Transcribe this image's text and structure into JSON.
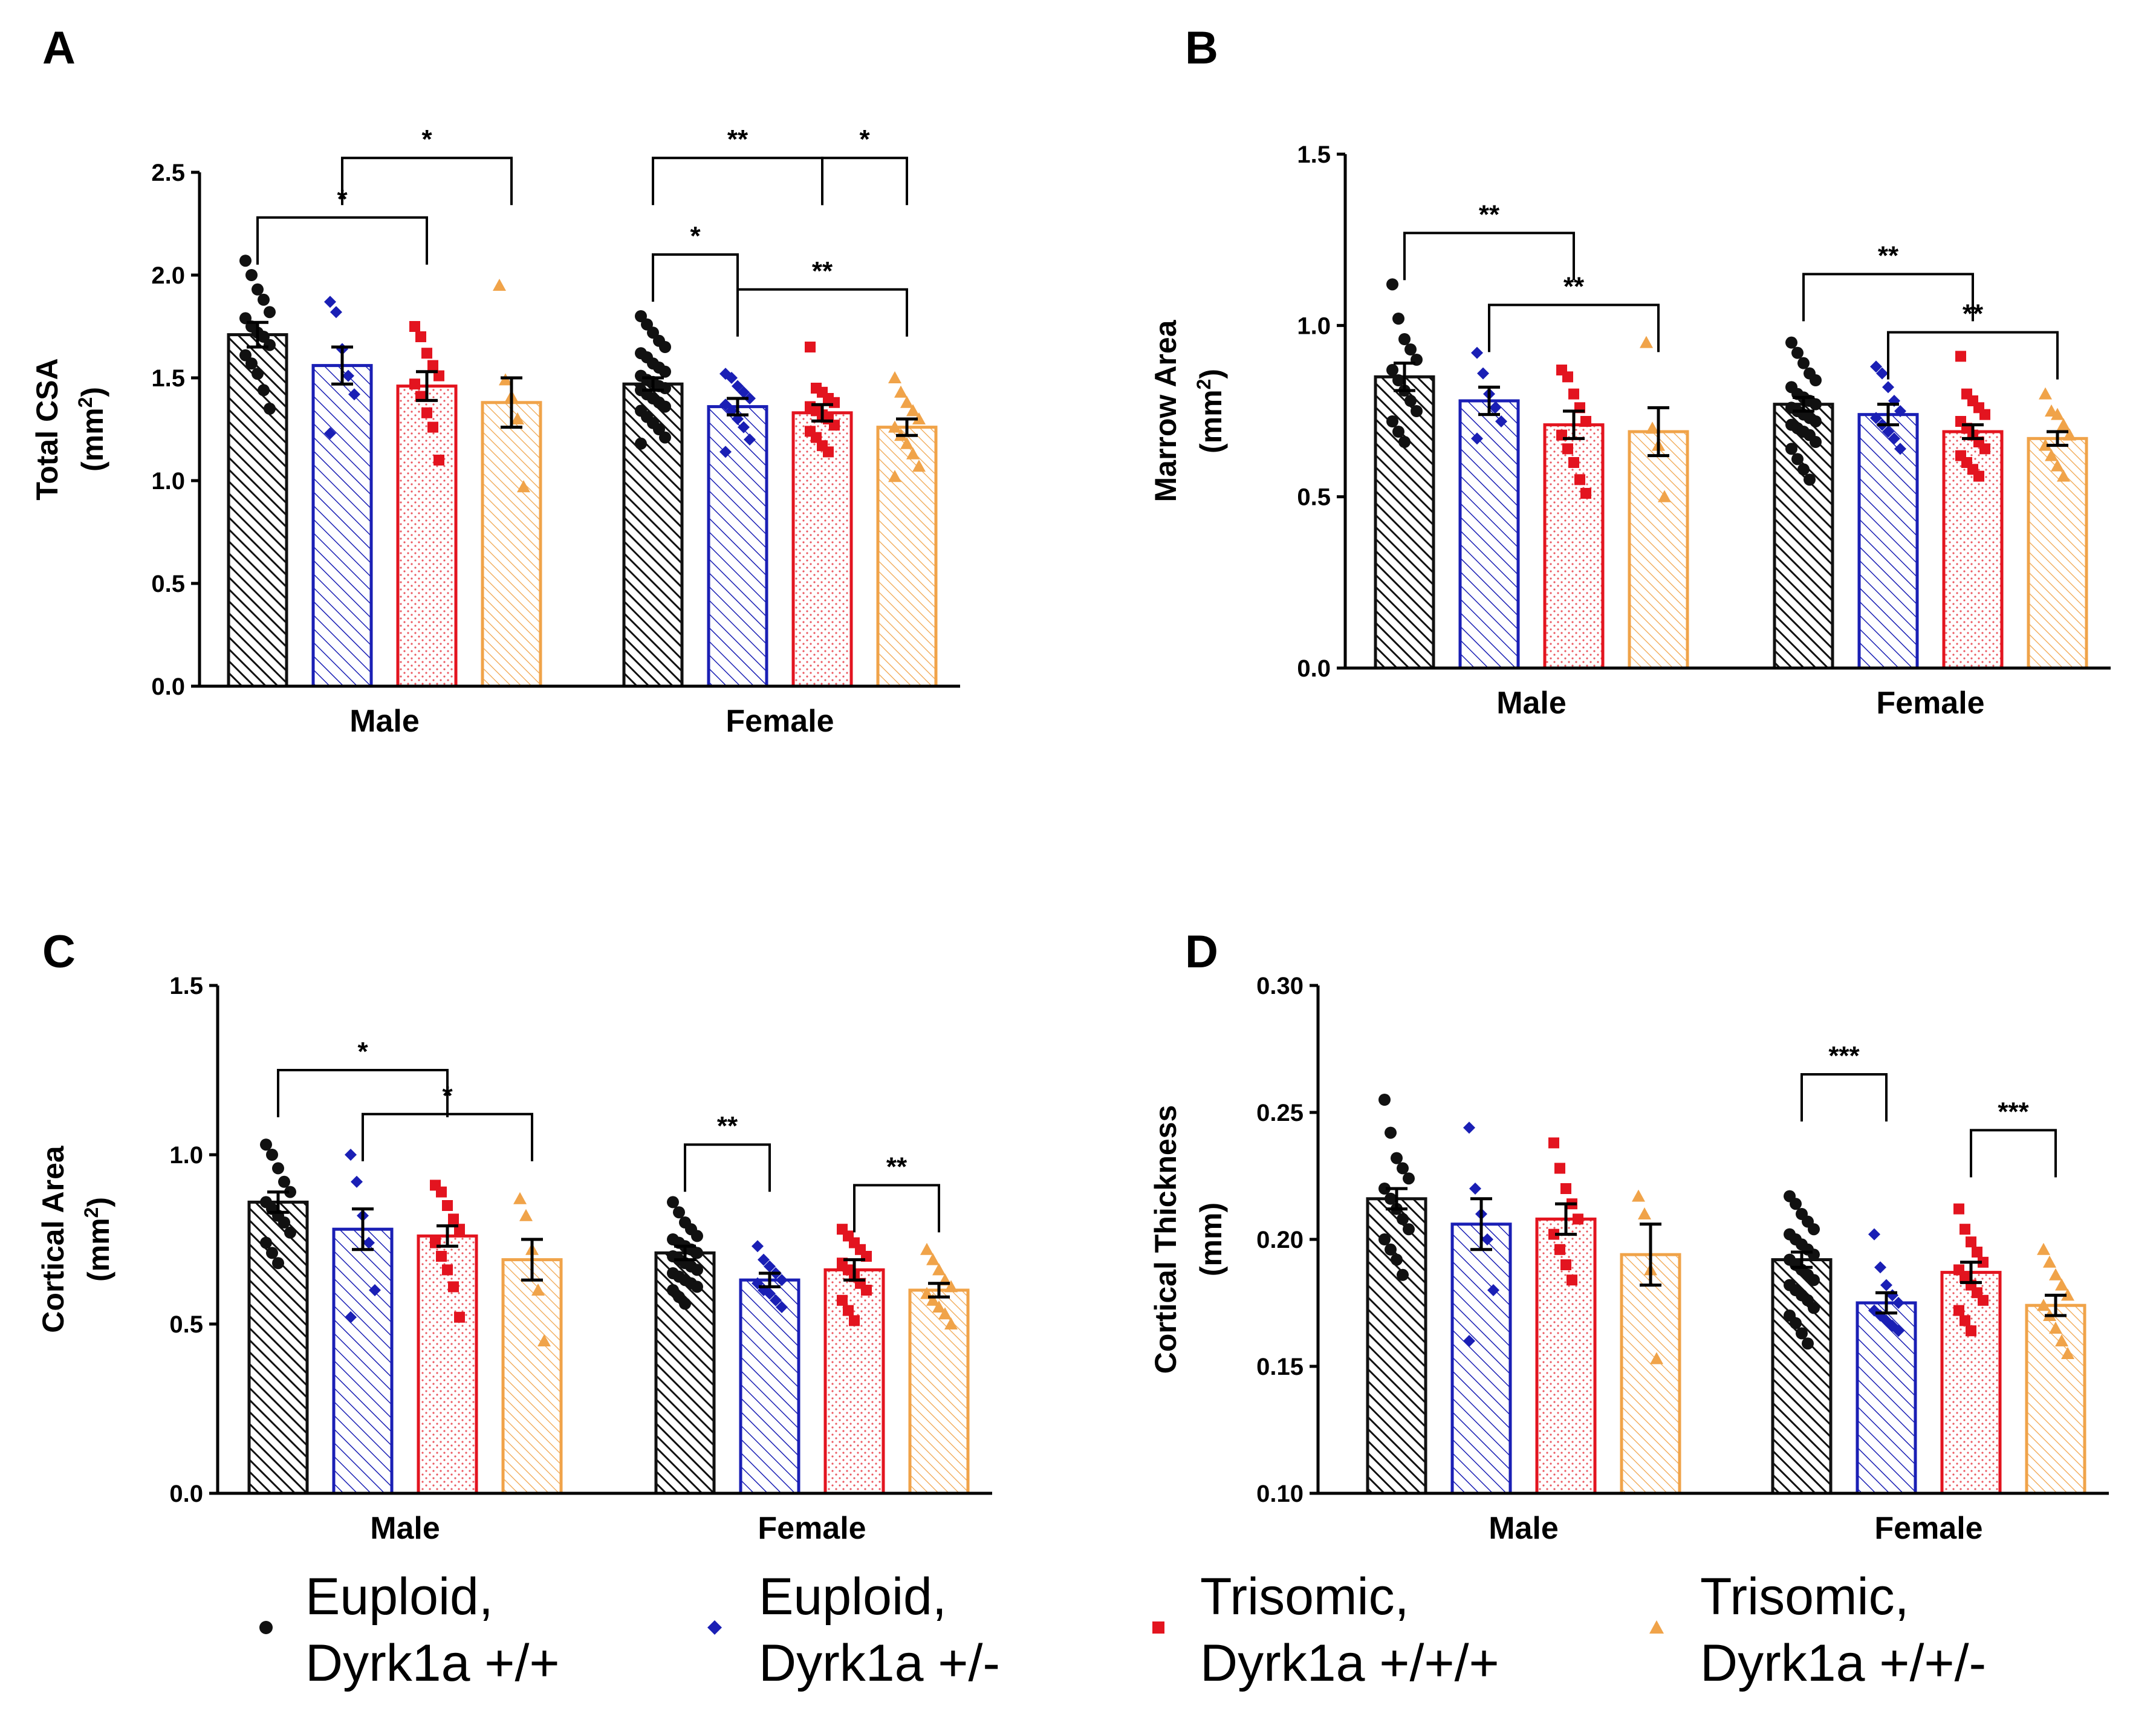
{
  "colors": {
    "euploid_wt": "#111111",
    "euploid_het": "#1a1fb5",
    "trisomic_wt": "#e3141f",
    "trisomic_het": "#f0a349"
  },
  "legend": [
    {
      "key": "euploid_wt",
      "marker": "circle",
      "line1": "Euploid,",
      "line2": "Dyrk1a +/+"
    },
    {
      "key": "euploid_het",
      "marker": "diamond",
      "line1": "Euploid,",
      "line2": "Dyrk1a +/-"
    },
    {
      "key": "trisomic_wt",
      "marker": "square",
      "line1": "Trisomic,",
      "line2": "Dyrk1a +/+/+"
    },
    {
      "key": "trisomic_het",
      "marker": "triangle",
      "line1": "Trisomic,",
      "line2": "Dyrk1a +/+/-"
    }
  ],
  "chart_data": [
    {
      "panel": "A",
      "type": "bar",
      "title": "",
      "ylabel_line1": "Total CSA",
      "ylabel_line2": "(mm",
      "ylabel_sup": "2",
      "ylabel_end": ")",
      "xlabel": "",
      "ylim": [
        0,
        2.5
      ],
      "yticks": [
        0,
        0.5,
        1.0,
        1.5,
        2.0,
        2.5
      ],
      "ytick_labels": [
        "0.0",
        "0.5",
        "1.0",
        "1.5",
        "2.0",
        "2.5"
      ],
      "categories": [
        "Male",
        "Female"
      ],
      "series": [
        {
          "name": "Euploid, Dyrk1a +/+",
          "values": [
            1.71,
            1.47
          ],
          "sem": [
            0.06,
            0.03
          ],
          "points": [
            [
              2.07,
              2.0,
              1.93,
              1.88,
              1.82,
              1.79,
              1.75,
              1.72,
              1.7,
              1.66,
              1.61,
              1.57,
              1.52,
              1.44,
              1.35
            ],
            [
              1.8,
              1.76,
              1.72,
              1.68,
              1.65,
              1.62,
              1.6,
              1.57,
              1.55,
              1.53,
              1.51,
              1.49,
              1.48,
              1.46,
              1.45,
              1.44,
              1.42,
              1.4,
              1.38,
              1.36,
              1.34,
              1.31,
              1.28,
              1.25,
              1.21,
              1.18
            ]
          ]
        },
        {
          "name": "Euploid, Dyrk1a +/-",
          "values": [
            1.56,
            1.36
          ],
          "sem": [
            0.09,
            0.04
          ],
          "points": [
            [
              1.87,
              1.82,
              1.64,
              1.51,
              1.42,
              1.23
            ],
            [
              1.52,
              1.5,
              1.46,
              1.43,
              1.4,
              1.37,
              1.34,
              1.3,
              1.26,
              1.2,
              1.14
            ]
          ]
        },
        {
          "name": "Trisomic, Dyrk1a +/+/+",
          "values": [
            1.46,
            1.33
          ],
          "sem": [
            0.07,
            0.04
          ],
          "points": [
            [
              1.75,
              1.7,
              1.62,
              1.56,
              1.51,
              1.47,
              1.41,
              1.33,
              1.26,
              1.1
            ],
            [
              1.65,
              1.45,
              1.43,
              1.4,
              1.38,
              1.36,
              1.34,
              1.32,
              1.3,
              1.27,
              1.24,
              1.21,
              1.17,
              1.14
            ]
          ]
        },
        {
          "name": "Trisomic, Dyrk1a +/+/-",
          "values": [
            1.38,
            1.26
          ],
          "sem": [
            0.12,
            0.04
          ],
          "points": [
            [
              1.95,
              1.49,
              1.41,
              1.3,
              0.97
            ],
            [
              1.5,
              1.43,
              1.38,
              1.34,
              1.3,
              1.26,
              1.22,
              1.18,
              1.13,
              1.07,
              1.02
            ]
          ]
        }
      ],
      "annotations": [
        {
          "label": "*",
          "from": [
            0,
            0
          ],
          "to": [
            0,
            2
          ],
          "level": 2.28
        },
        {
          "label": "*",
          "from": [
            0,
            1
          ],
          "to": [
            0,
            3
          ],
          "level": 2.57
        },
        {
          "label": "**",
          "from": [
            1,
            0
          ],
          "to": [
            1,
            2
          ],
          "level": 2.57
        },
        {
          "label": "*",
          "from": [
            1,
            2
          ],
          "to": [
            1,
            3
          ],
          "level": 2.57
        },
        {
          "label": "*",
          "from": [
            1,
            0
          ],
          "to": [
            1,
            1
          ],
          "level": 2.1
        },
        {
          "label": "**",
          "from": [
            1,
            1
          ],
          "to": [
            1,
            3
          ],
          "level": 1.93
        }
      ]
    },
    {
      "panel": "B",
      "type": "bar",
      "title": "",
      "ylabel_line1": "Marrow Area",
      "ylabel_line2": "(mm",
      "ylabel_sup": "2",
      "ylabel_end": ")",
      "xlabel": "",
      "ylim": [
        0,
        1.5
      ],
      "yticks": [
        0,
        0.5,
        1.0,
        1.5
      ],
      "ytick_labels": [
        "0.0",
        "0.5",
        "1.0",
        "1.5"
      ],
      "categories": [
        "Male",
        "Female"
      ],
      "series": [
        {
          "name": "Euploid, Dyrk1a +/+",
          "values": [
            0.85,
            0.77
          ],
          "sem": [
            0.04,
            0.02
          ],
          "points": [
            [
              1.12,
              1.02,
              0.96,
              0.93,
              0.9,
              0.87,
              0.84,
              0.81,
              0.78,
              0.75,
              0.72,
              0.69,
              0.66
            ],
            [
              0.95,
              0.92,
              0.89,
              0.86,
              0.84,
              0.82,
              0.8,
              0.79,
              0.78,
              0.77,
              0.76,
              0.75,
              0.74,
              0.73,
              0.72,
              0.71,
              0.7,
              0.69,
              0.68,
              0.66,
              0.64,
              0.61,
              0.58,
              0.55
            ]
          ]
        },
        {
          "name": "Euploid, Dyrk1a +/-",
          "values": [
            0.78,
            0.74
          ],
          "sem": [
            0.04,
            0.03
          ],
          "points": [
            [
              0.92,
              0.86,
              0.8,
              0.76,
              0.72,
              0.67
            ],
            [
              0.88,
              0.86,
              0.82,
              0.78,
              0.75,
              0.73,
              0.71,
              0.69,
              0.67,
              0.64
            ]
          ]
        },
        {
          "name": "Trisomic, Dyrk1a +/+/+",
          "values": [
            0.71,
            0.69
          ],
          "sem": [
            0.04,
            0.02
          ],
          "points": [
            [
              0.87,
              0.85,
              0.8,
              0.76,
              0.72,
              0.68,
              0.64,
              0.6,
              0.55,
              0.51
            ],
            [
              0.91,
              0.8,
              0.78,
              0.76,
              0.74,
              0.72,
              0.7,
              0.68,
              0.66,
              0.64,
              0.62,
              0.6,
              0.58,
              0.56
            ]
          ]
        },
        {
          "name": "Trisomic, Dyrk1a +/+/-",
          "values": [
            0.69,
            0.67
          ],
          "sem": [
            0.07,
            0.02
          ],
          "points": [
            [
              0.95,
              0.7,
              0.65,
              0.5
            ],
            [
              0.8,
              0.75,
              0.74,
              0.71,
              0.68,
              0.65,
              0.62,
              0.59,
              0.56
            ]
          ]
        }
      ],
      "annotations": [
        {
          "label": "**",
          "from": [
            0,
            0
          ],
          "to": [
            0,
            2
          ],
          "level": 1.27
        },
        {
          "label": "**",
          "from": [
            0,
            1
          ],
          "to": [
            0,
            3
          ],
          "level": 1.06
        },
        {
          "label": "**",
          "from": [
            1,
            0
          ],
          "to": [
            1,
            2
          ],
          "level": 1.15
        },
        {
          "label": "**",
          "from": [
            1,
            1
          ],
          "to": [
            1,
            3
          ],
          "level": 0.98
        }
      ]
    },
    {
      "panel": "C",
      "type": "bar",
      "title": "",
      "ylabel_line1": "Cortical Area",
      "ylabel_line2": "(mm",
      "ylabel_sup": "2",
      "ylabel_end": ")",
      "xlabel": "",
      "ylim": [
        0,
        1.5
      ],
      "yticks": [
        0,
        0.5,
        1.0,
        1.5
      ],
      "ytick_labels": [
        "0.0",
        "0.5",
        "1.0",
        "1.5"
      ],
      "categories": [
        "Male",
        "Female"
      ],
      "series": [
        {
          "name": "Euploid, Dyrk1a +/+",
          "values": [
            0.86,
            0.71
          ],
          "sem": [
            0.03,
            0.02
          ],
          "points": [
            [
              1.03,
              1.0,
              0.96,
              0.92,
              0.89,
              0.86,
              0.84,
              0.82,
              0.8,
              0.77,
              0.74,
              0.71,
              0.68
            ],
            [
              0.86,
              0.83,
              0.8,
              0.78,
              0.76,
              0.75,
              0.74,
              0.73,
              0.72,
              0.71,
              0.7,
              0.69,
              0.68,
              0.67,
              0.66,
              0.65,
              0.64,
              0.63,
              0.62,
              0.61,
              0.6,
              0.58,
              0.56
            ]
          ]
        },
        {
          "name": "Euploid, Dyrk1a +/-",
          "values": [
            0.78,
            0.63
          ],
          "sem": [
            0.06,
            0.02
          ],
          "points": [
            [
              1.0,
              0.92,
              0.82,
              0.74,
              0.6,
              0.52
            ],
            [
              0.73,
              0.69,
              0.67,
              0.65,
              0.63,
              0.62,
              0.6,
              0.59,
              0.57,
              0.55
            ]
          ]
        },
        {
          "name": "Trisomic, Dyrk1a +/+/+",
          "values": [
            0.76,
            0.66
          ],
          "sem": [
            0.03,
            0.03
          ],
          "points": [
            [
              0.91,
              0.89,
              0.85,
              0.81,
              0.78,
              0.74,
              0.7,
              0.66,
              0.61,
              0.52
            ],
            [
              0.78,
              0.76,
              0.74,
              0.72,
              0.7,
              0.68,
              0.66,
              0.64,
              0.62,
              0.6,
              0.57,
              0.54,
              0.51
            ]
          ]
        },
        {
          "name": "Trisomic, Dyrk1a +/+/-",
          "values": [
            0.69,
            0.6
          ],
          "sem": [
            0.06,
            0.02
          ],
          "points": [
            [
              0.87,
              0.82,
              0.72,
              0.6,
              0.45
            ],
            [
              0.72,
              0.69,
              0.66,
              0.63,
              0.61,
              0.59,
              0.57,
              0.55,
              0.53,
              0.5
            ]
          ]
        }
      ],
      "annotations": [
        {
          "label": "*",
          "from": [
            0,
            0
          ],
          "to": [
            0,
            2
          ],
          "level": 1.25
        },
        {
          "label": "*",
          "from": [
            0,
            1
          ],
          "to": [
            0,
            3
          ],
          "level": 1.12
        },
        {
          "label": "**",
          "from": [
            1,
            0
          ],
          "to": [
            1,
            1
          ],
          "level": 1.03
        },
        {
          "label": "**",
          "from": [
            1,
            2
          ],
          "to": [
            1,
            3
          ],
          "level": 0.91
        }
      ]
    },
    {
      "panel": "D",
      "type": "bar",
      "title": "",
      "ylabel_line1": "Cortical  Thickness",
      "ylabel_line2": "(mm)",
      "ylabel_sup": "",
      "ylabel_end": "",
      "xlabel": "",
      "ylim": [
        0.1,
        0.3
      ],
      "yticks": [
        0.1,
        0.15,
        0.2,
        0.25,
        0.3
      ],
      "ytick_labels": [
        "0.10",
        "0.15",
        "0.20",
        "0.25",
        "0.30"
      ],
      "categories": [
        "Male",
        "Female"
      ],
      "series": [
        {
          "name": "Euploid, Dyrk1a +/+",
          "values": [
            0.216,
            0.192
          ],
          "sem": [
            0.004,
            0.003
          ],
          "points": [
            [
              0.255,
              0.242,
              0.232,
              0.228,
              0.224,
              0.22,
              0.216,
              0.212,
              0.208,
              0.204,
              0.2,
              0.196,
              0.192,
              0.186
            ],
            [
              0.217,
              0.214,
              0.21,
              0.207,
              0.204,
              0.202,
              0.2,
              0.198,
              0.196,
              0.194,
              0.192,
              0.19,
              0.188,
              0.186,
              0.184,
              0.182,
              0.18,
              0.178,
              0.176,
              0.173,
              0.17,
              0.167,
              0.163,
              0.159
            ]
          ]
        },
        {
          "name": "Euploid, Dyrk1a +/-",
          "values": [
            0.206,
            0.175
          ],
          "sem": [
            0.01,
            0.004
          ],
          "points": [
            [
              0.244,
              0.22,
              0.21,
              0.2,
              0.18,
              0.16
            ],
            [
              0.202,
              0.189,
              0.182,
              0.178,
              0.175,
              0.172,
              0.17,
              0.168,
              0.166,
              0.164
            ]
          ]
        },
        {
          "name": "Trisomic, Dyrk1a +/+/+",
          "values": [
            0.208,
            0.187
          ],
          "sem": [
            0.006,
            0.004
          ],
          "points": [
            [
              0.238,
              0.228,
              0.22,
              0.214,
              0.208,
              0.202,
              0.196,
              0.19,
              0.184
            ],
            [
              0.212,
              0.204,
              0.199,
              0.195,
              0.191,
              0.188,
              0.185,
              0.182,
              0.179,
              0.176,
              0.172,
              0.168,
              0.164
            ]
          ]
        },
        {
          "name": "Trisomic, Dyrk1a +/+/-",
          "values": [
            0.194,
            0.174
          ],
          "sem": [
            0.012,
            0.004
          ],
          "points": [
            [
              0.217,
              0.21,
              0.188,
              0.153
            ],
            [
              0.196,
              0.191,
              0.186,
              0.182,
              0.178,
              0.174,
              0.17,
              0.165,
              0.16,
              0.155
            ]
          ]
        }
      ],
      "annotations": [
        {
          "label": "***",
          "from": [
            1,
            0
          ],
          "to": [
            1,
            1
          ],
          "level": 0.265
        },
        {
          "label": "***",
          "from": [
            1,
            2
          ],
          "to": [
            1,
            3
          ],
          "level": 0.243
        }
      ]
    }
  ]
}
